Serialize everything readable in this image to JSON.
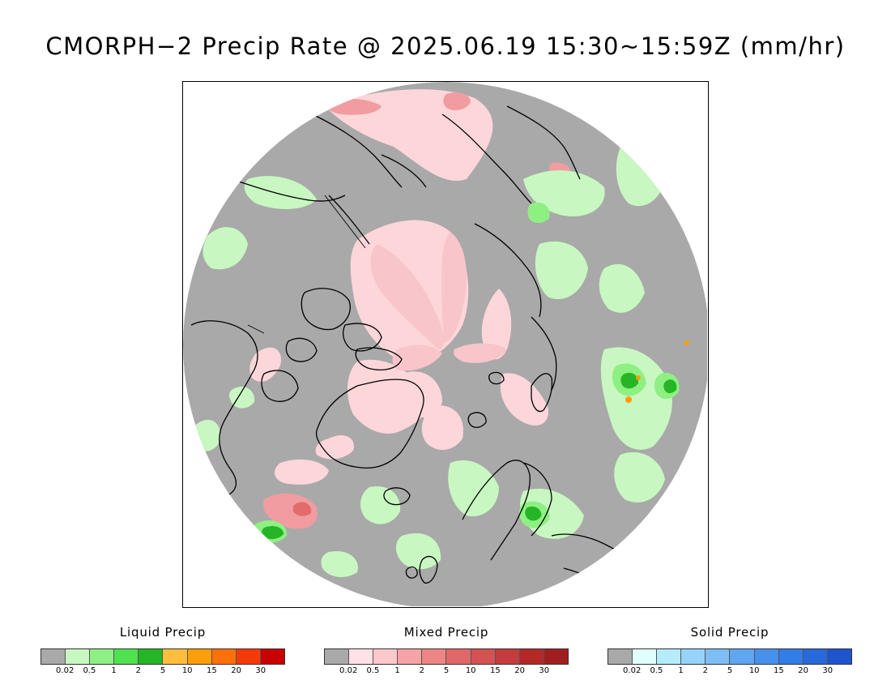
{
  "title": "CMORPH−2 Precip Rate @ 2025.06.19 15:30~15:59Z (mm/hr)",
  "map": {
    "projection": "polar-stereographic-north",
    "background_color": "#a9a9a9",
    "coastline_color": "#000000"
  },
  "legends": [
    {
      "title": "Liquid Precip",
      "colors": [
        "#a9a9a9",
        "#c8f7c1",
        "#8ef082",
        "#4fe24f",
        "#26b526",
        "#ffbe3d",
        "#ff9d0a",
        "#ff6f0a",
        "#f53a0a",
        "#c80000"
      ],
      "ticks": [
        "0.02",
        "0.5",
        "1",
        "2",
        "5",
        "10",
        "15",
        "20",
        "30"
      ]
    },
    {
      "title": "Mixed Precip",
      "colors": [
        "#a9a9a9",
        "#ffe1e6",
        "#fdc8cc",
        "#f5a3a6",
        "#ec8586",
        "#e06868",
        "#d45252",
        "#c43c3c",
        "#b42828",
        "#a11e1e"
      ],
      "ticks": [
        "0.02",
        "0.5",
        "1",
        "2",
        "5",
        "10",
        "15",
        "20",
        "30"
      ]
    },
    {
      "title": "Solid Precip",
      "colors": [
        "#a9a9a9",
        "#e1ffff",
        "#b4ecfa",
        "#96d2fa",
        "#7dbef5",
        "#5fa5f0",
        "#4691eb",
        "#327de6",
        "#2869dc",
        "#1e55cd"
      ],
      "ticks": [
        "0.02",
        "0.5",
        "1",
        "2",
        "5",
        "10",
        "15",
        "20",
        "30"
      ]
    }
  ]
}
